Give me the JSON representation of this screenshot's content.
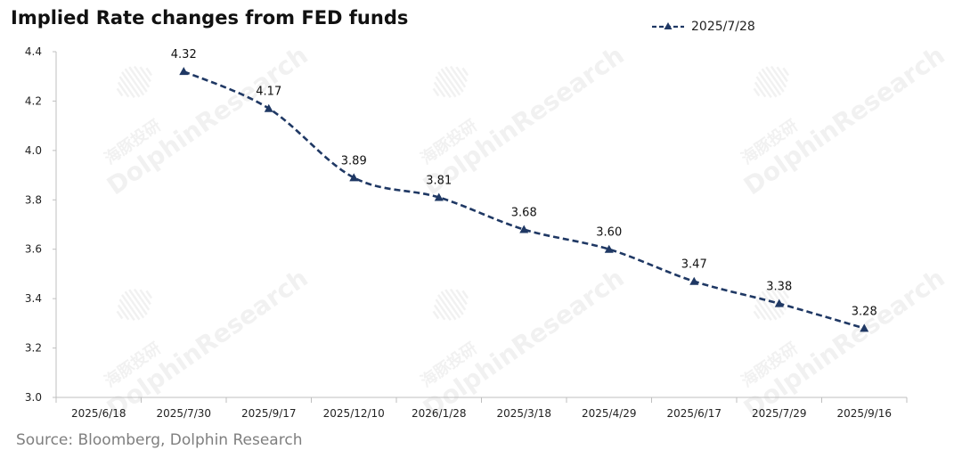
{
  "title": "Implied Rate changes from FED funds",
  "source": "Source: Bloomberg, Dolphin Research",
  "watermark": {
    "cn": "海豚投研",
    "en": "DolphinResearch"
  },
  "colors": {
    "series": "#1f3864",
    "axis": "#bfbfbf",
    "text": "#222222"
  },
  "chart_data": {
    "type": "line",
    "title": "Implied Rate changes from FED funds",
    "xlabel": "",
    "ylabel": "",
    "categories": [
      "2025/6/18",
      "2025/7/30",
      "2025/9/17",
      "2025/12/10",
      "2026/1/28",
      "2025/3/18",
      "2025/4/29",
      "2025/6/17",
      "2025/7/29",
      "2025/9/16"
    ],
    "ylim": [
      3.0,
      4.4
    ],
    "yticks": [
      "3.0",
      "3.2",
      "3.4",
      "3.6",
      "3.8",
      "4.0",
      "4.2",
      "4.4"
    ],
    "grid": false,
    "legend_position": "top-right",
    "series": [
      {
        "name": "2025/7/28",
        "values": [
          null,
          4.32,
          4.17,
          3.89,
          3.81,
          3.68,
          3.6,
          3.47,
          3.38,
          3.28
        ],
        "labels": [
          "",
          "4.32",
          "4.17",
          "3.89",
          "3.81",
          "3.68",
          "3.60",
          "3.47",
          "3.38",
          "3.28"
        ],
        "style": "dashed",
        "marker": "triangle"
      }
    ]
  }
}
